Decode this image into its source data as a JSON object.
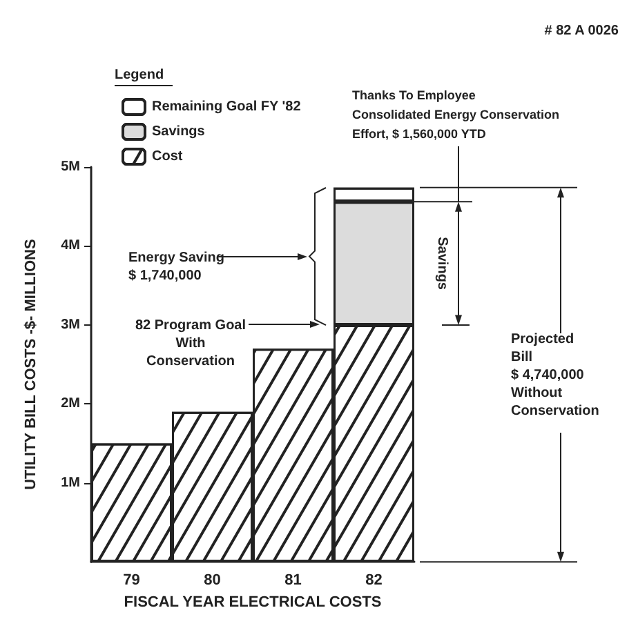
{
  "chart_data": {
    "type": "bar",
    "stacked": true,
    "xlabel": "FISCAL YEAR ELECTRICAL COSTS",
    "ylabel": "UTILITY BILL COSTS -$- MILLIONS",
    "legend_title": "Legend",
    "legend": "top left",
    "grid": false,
    "categories": [
      "79",
      "80",
      "81",
      "82"
    ],
    "series": [
      {
        "name": "Cost",
        "color": "#ffffff",
        "values": [
          1.5,
          1.9,
          2.7,
          3.0
        ]
      },
      {
        "name": "Savings",
        "color": "#dcdcdc",
        "values": [
          null,
          null,
          null,
          1.56
        ]
      },
      {
        "name": "Remaining Goal FY '82",
        "color": "#ffffff",
        "values": [
          null,
          null,
          null,
          0.18
        ]
      }
    ],
    "ylim": [
      0,
      5
    ],
    "yticks": [
      {
        "value": 1,
        "label": "1M"
      },
      {
        "value": 2,
        "label": "2M"
      },
      {
        "value": 3,
        "label": "3M"
      },
      {
        "value": 4,
        "label": "4M"
      },
      {
        "value": 5,
        "label": "5M"
      }
    ],
    "annotations": [
      "# 82 A 0026",
      "Thanks To Employee\nConsolidated Energy Conservation\nEffort, $ 1,560,000 YTD",
      "Energy Saving\n$ 1,740,000",
      "82 Program Goal\nWith\nConservation",
      "Savings",
      "Projected\nBill\n$ 4,740,000\nWithout\nConservation"
    ]
  }
}
